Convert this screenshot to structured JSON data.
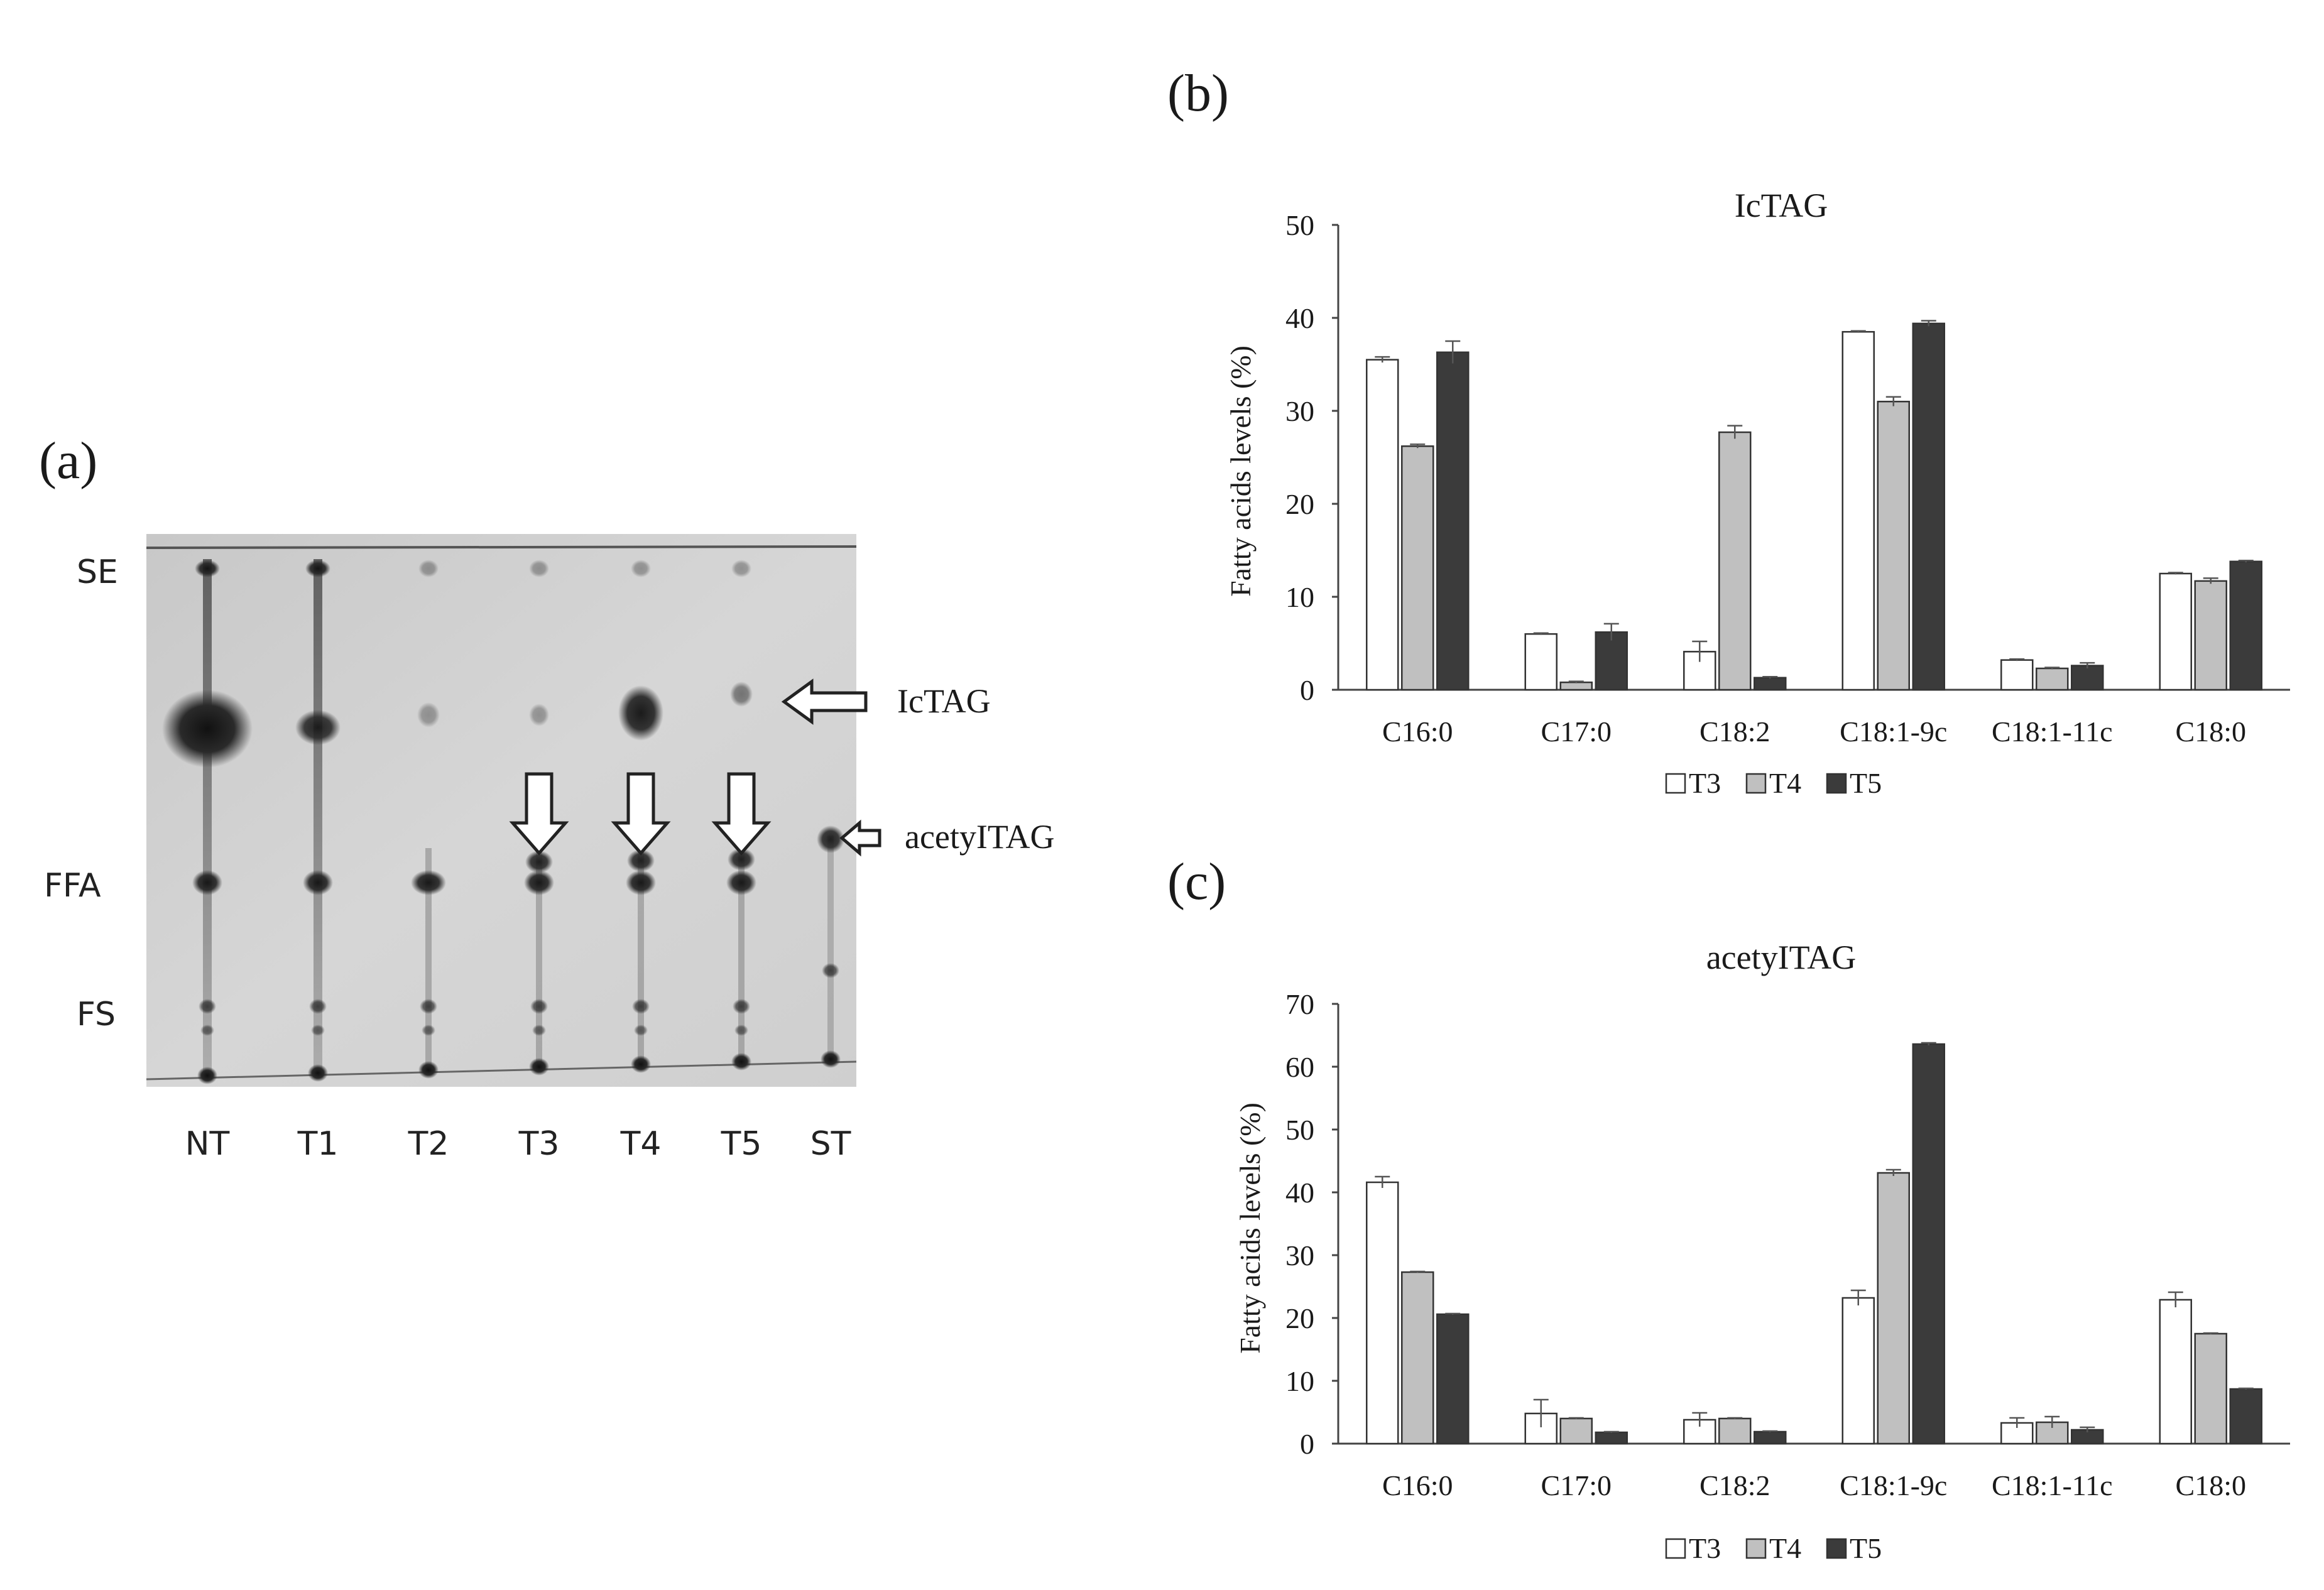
{
  "panels": {
    "a": "(a)",
    "b": "(b)",
    "c": "(c)"
  },
  "tlc": {
    "band_labels": [
      "SE",
      "FFA",
      "FS"
    ],
    "lane_labels": [
      "NT",
      "T1",
      "T2",
      "T3",
      "T4",
      "T5",
      "ST"
    ],
    "arrow_labels": {
      "ictag": "IcTAG",
      "acetyltag": "acetyITAG"
    },
    "colors": {
      "plate": "#d2d2d2",
      "spot": "#1c1c1c"
    }
  },
  "chart_data": [
    {
      "type": "bar",
      "title": "IcTAG",
      "ylabel": "Fatty acids levels (%)",
      "xlabel": "",
      "categories": [
        "C16:0",
        "C17:0",
        "C18:2",
        "C18:1-9c",
        "C18:1-11c",
        "C18:0"
      ],
      "ylim": [
        0,
        50
      ],
      "yticks": [
        "0",
        "10",
        "20",
        "30",
        "40",
        "50"
      ],
      "grid": false,
      "legend_position": "bottom",
      "series": [
        {
          "name": "T3",
          "color": "#ffffff",
          "values": [
            35.5,
            6.0,
            4.1,
            38.5,
            3.2,
            12.5
          ],
          "errors": [
            0.3,
            0.1,
            1.1,
            0.1,
            0.1,
            0.1
          ]
        },
        {
          "name": "T4",
          "color": "#c0c0c0",
          "values": [
            26.2,
            0.8,
            27.7,
            31.0,
            2.3,
            11.7
          ],
          "errors": [
            0.2,
            0.1,
            0.7,
            0.5,
            0.1,
            0.3
          ]
        },
        {
          "name": "T5",
          "color": "#3b3b3b",
          "values": [
            36.3,
            6.2,
            1.3,
            39.4,
            2.6,
            13.8
          ],
          "errors": [
            1.2,
            0.9,
            0.1,
            0.3,
            0.3,
            0.1
          ]
        }
      ]
    },
    {
      "type": "bar",
      "title": "acetyITAG",
      "ylabel": "Fatty acids levels (%)",
      "xlabel": "",
      "categories": [
        "C16:0",
        "C17:0",
        "C18:2",
        "C18:1-9c",
        "C18:1-11c",
        "C18:0"
      ],
      "ylim": [
        0,
        70
      ],
      "yticks": [
        "0",
        "10",
        "20",
        "30",
        "40",
        "50",
        "60",
        "70"
      ],
      "grid": false,
      "legend_position": "bottom",
      "series": [
        {
          "name": "T3",
          "color": "#ffffff",
          "values": [
            41.6,
            4.8,
            3.8,
            23.2,
            3.3,
            22.9
          ],
          "errors": [
            0.9,
            2.2,
            1.1,
            1.2,
            0.8,
            1.2
          ]
        },
        {
          "name": "T4",
          "color": "#c0c0c0",
          "values": [
            27.3,
            4.0,
            4.0,
            43.1,
            3.4,
            17.5
          ],
          "errors": [
            0.1,
            0.1,
            0.1,
            0.5,
            0.9,
            0.1
          ]
        },
        {
          "name": "T5",
          "color": "#3b3b3b",
          "values": [
            20.6,
            1.8,
            1.9,
            63.6,
            2.2,
            8.7
          ],
          "errors": [
            0.1,
            0.1,
            0.1,
            0.2,
            0.4,
            0.1
          ]
        }
      ]
    }
  ]
}
